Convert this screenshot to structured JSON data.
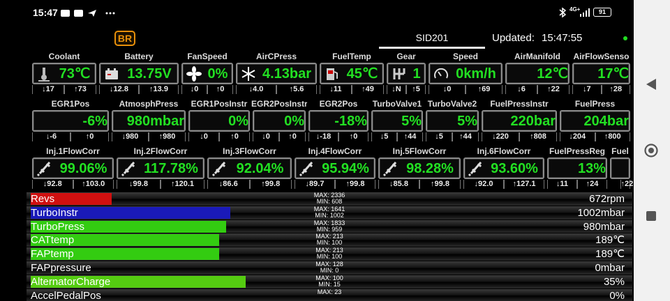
{
  "status_bar": {
    "time": "15:47",
    "network": "4G+",
    "battery": "91"
  },
  "header": {
    "logo": "BR",
    "tab": "SID201",
    "updated_label": "Updated:",
    "updated_time": "15:47:55"
  },
  "gauge_rows": [
    {
      "cells": [
        {
          "label": "Coolant",
          "value": "73℃",
          "min": "↓17",
          "max": "↑73"
        },
        {
          "label": "Battery",
          "value": "13.75V",
          "min": "↓12.8",
          "max": "↑13.9"
        },
        {
          "label": "FanSpeed",
          "value": "0%",
          "min": "↓0",
          "max": "↑0"
        },
        {
          "label": "AirCPress",
          "value": "4.13bar",
          "min": "↓4.0",
          "max": "↑5.6"
        },
        {
          "label": "FuelTemp",
          "value": "45℃",
          "min": "↓11",
          "max": "↑49"
        },
        {
          "label": "Gear",
          "value": "1",
          "min": "↓N",
          "max": "↑5"
        },
        {
          "label": "Speed",
          "value": "0km/h",
          "min": "↓0",
          "max": "↑69"
        },
        {
          "label": "AirManifold",
          "value": "12℃",
          "min": "↓6",
          "max": "↑22"
        },
        {
          "label": "AirFlowSenso",
          "value": "17℃",
          "min": "↓7",
          "max": "↑28"
        }
      ]
    },
    {
      "cells": [
        {
          "label": "EGR1Pos",
          "value": "-6%",
          "min": "↓-6",
          "max": "↑0"
        },
        {
          "label": "AtmosphPress",
          "value": "980mbar",
          "min": "↓980",
          "max": "↑980"
        },
        {
          "label": "EGR1PosInstr",
          "value": "0%",
          "min": "↓0",
          "max": "↑0"
        },
        {
          "label": "EGR2PosInstr",
          "value": "0%",
          "min": "↓0",
          "max": "↑0"
        },
        {
          "label": "EGR2Pos",
          "value": "-18%",
          "min": "↓-18",
          "max": "↑0"
        },
        {
          "label": "TurboValve1",
          "value": "5%",
          "min": "↓5",
          "max": "↑44"
        },
        {
          "label": "TurboValve2",
          "value": "5%",
          "min": "↓5",
          "max": "↑44"
        },
        {
          "label": "FuelPressInstr",
          "value": "220bar",
          "min": "↓220",
          "max": "↑808"
        },
        {
          "label": "FuelPress",
          "value": "204bar",
          "min": "↓204",
          "max": "↑800"
        }
      ]
    },
    {
      "cells": [
        {
          "label": "Inj.1FlowCorr",
          "value": "99.06%",
          "min": "↓92.8",
          "max": "↑103.0"
        },
        {
          "label": "Inj.2FlowCorr",
          "value": "117.78%",
          "min": "↓99.8",
          "max": "↑120.1"
        },
        {
          "label": "Inj.3FlowCorr",
          "value": "92.04%",
          "min": "↓86.6",
          "max": "↑99.8"
        },
        {
          "label": "Inj.4FlowCorr",
          "value": "95.94%",
          "min": "↓89.7",
          "max": "↑99.8"
        },
        {
          "label": "Inj.5FlowCorr",
          "value": "98.28%",
          "min": "↓85.8",
          "max": "↑99.8"
        },
        {
          "label": "Inj.6FlowCorr",
          "value": "93.60%",
          "min": "↓92.0",
          "max": "↑127.1"
        },
        {
          "label": "FuelPressReg",
          "value": "13%",
          "min": "↓11",
          "max": "↑24"
        },
        {
          "label": "Fuel",
          "max": "↑22"
        }
      ]
    }
  ],
  "bars": [
    {
      "name": "Revs",
      "max": "MAX: 2336",
      "min": "MIN: 608",
      "value": "672rpm",
      "color": "#d01010"
    },
    {
      "name": "TurboInstr",
      "max": "MAX: 1641",
      "min": "MIN: 1002",
      "value": "1002mbar",
      "color": "#1a1ab8"
    },
    {
      "name": "TurboPress",
      "max": "MAX: 1833",
      "min": "MIN: 959",
      "value": "980mbar",
      "color": "#33cc11"
    },
    {
      "name": "CATtemp",
      "max": "MAX: 213",
      "min": "MIN: 100",
      "value": "189℃",
      "color": "#33cc11"
    },
    {
      "name": "FAPtemp",
      "max": "MAX: 213",
      "min": "MIN: 100",
      "value": "189℃",
      "color": "#33cc11"
    },
    {
      "name": "FAPpressure",
      "max": "MAX: 128",
      "min": "MIN: 0",
      "value": "0mbar"
    },
    {
      "name": "AlternatorCharge",
      "max": "MAX: 100",
      "min": "MIN: 15",
      "value": "35%",
      "color": "#55cc11"
    },
    {
      "name": "AccelPedalPos",
      "max": "MAX: 23",
      "value": "0%"
    }
  ]
}
